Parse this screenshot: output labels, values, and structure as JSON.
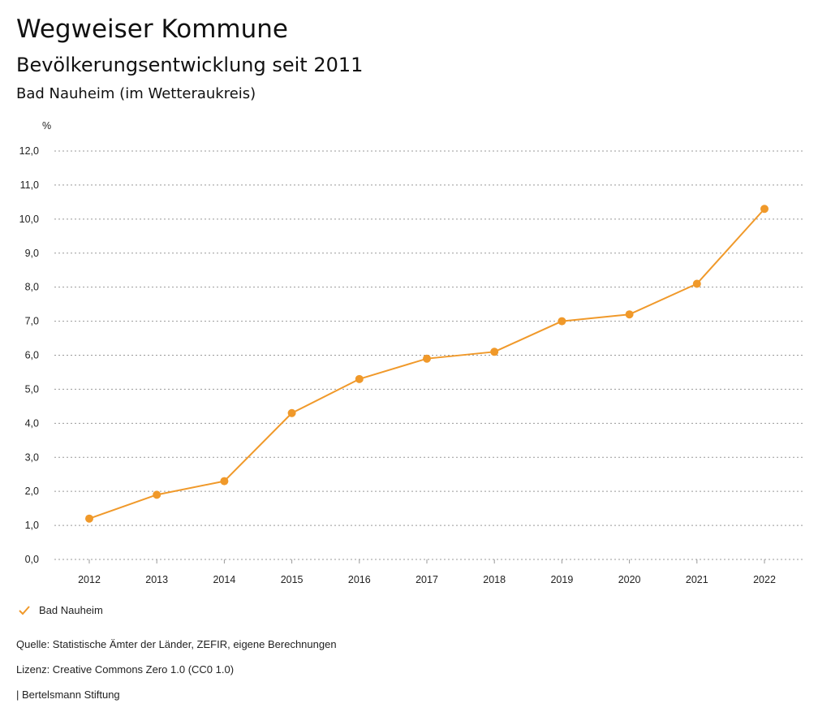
{
  "header": {
    "title": "Wegweiser Kommune",
    "subtitle": "Bevölkerungsentwicklung seit 2011",
    "region": "Bad Nauheim (im Wetteraukreis)"
  },
  "chart_data": {
    "type": "line",
    "unit_label": "%",
    "categories": [
      "2012",
      "2013",
      "2014",
      "2015",
      "2016",
      "2017",
      "2018",
      "2019",
      "2020",
      "2021",
      "2022"
    ],
    "series": [
      {
        "name": "Bad Nauheim",
        "color": "#f0992a",
        "values": [
          1.2,
          1.9,
          2.3,
          4.3,
          5.3,
          5.9,
          6.1,
          7.0,
          7.2,
          8.1,
          10.3
        ]
      }
    ],
    "ylim": [
      0,
      12
    ],
    "yticks": [
      "0,0",
      "1,0",
      "2,0",
      "3,0",
      "4,0",
      "5,0",
      "6,0",
      "7,0",
      "8,0",
      "9,0",
      "10,0",
      "11,0",
      "12,0"
    ],
    "grid": true,
    "legend_position": "bottom-left"
  },
  "legend": {
    "label": "Bad Nauheim"
  },
  "footer": {
    "source": "Quelle: Statistische Ämter der Länder, ZEFIR, eigene Berechnungen",
    "license": "Lizenz: Creative Commons Zero 1.0 (CC0 1.0)",
    "publisher": "| Bertelsmann Stiftung"
  }
}
